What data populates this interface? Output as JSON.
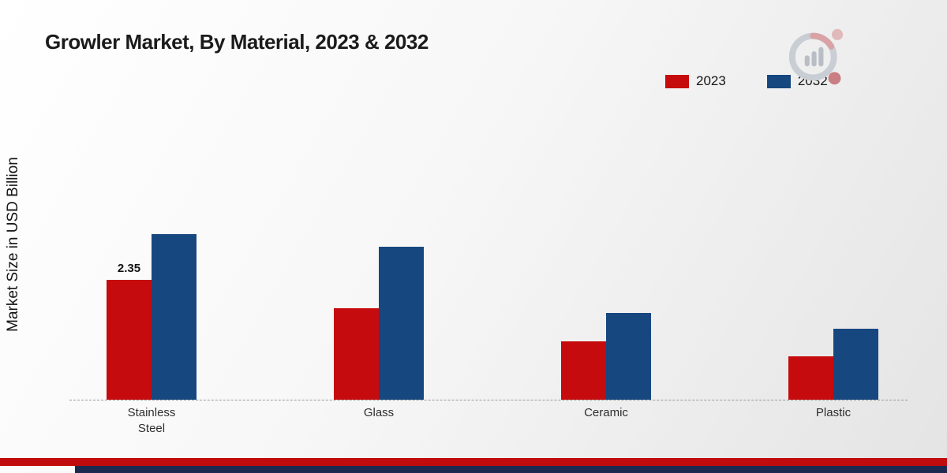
{
  "title": "Growler Market, By Material, 2023 & 2032",
  "ylabel": "Market Size in USD Billion",
  "legend": [
    {
      "label": "2023",
      "color": "#c50b0e"
    },
    {
      "label": "2032",
      "color": "#17477f"
    }
  ],
  "chart_data": {
    "type": "bar",
    "title": "Growler Market, By Material, 2023 & 2032",
    "xlabel": "",
    "ylabel": "Market Size in USD Billion",
    "categories": [
      "Stainless Steel",
      "Glass",
      "Ceramic",
      "Plastic"
    ],
    "series": [
      {
        "name": "2023",
        "color": "#c50b0e",
        "values": [
          2.35,
          1.8,
          1.15,
          0.85
        ]
      },
      {
        "name": "2032",
        "color": "#17477f",
        "values": [
          3.25,
          3.0,
          1.7,
          1.4
        ]
      }
    ],
    "data_labels": [
      {
        "series": "2023",
        "category": "Stainless Steel",
        "text": "2.35"
      }
    ],
    "ylim": [
      0,
      3.5
    ],
    "grid": false,
    "legend_position": "top-right",
    "baseline_style": "dashed"
  },
  "footer": {
    "red_strip_color": "#c00c0d",
    "navy_strip_color": "#1b2a4e"
  },
  "logo": {
    "name": "market-research-future-logo"
  }
}
